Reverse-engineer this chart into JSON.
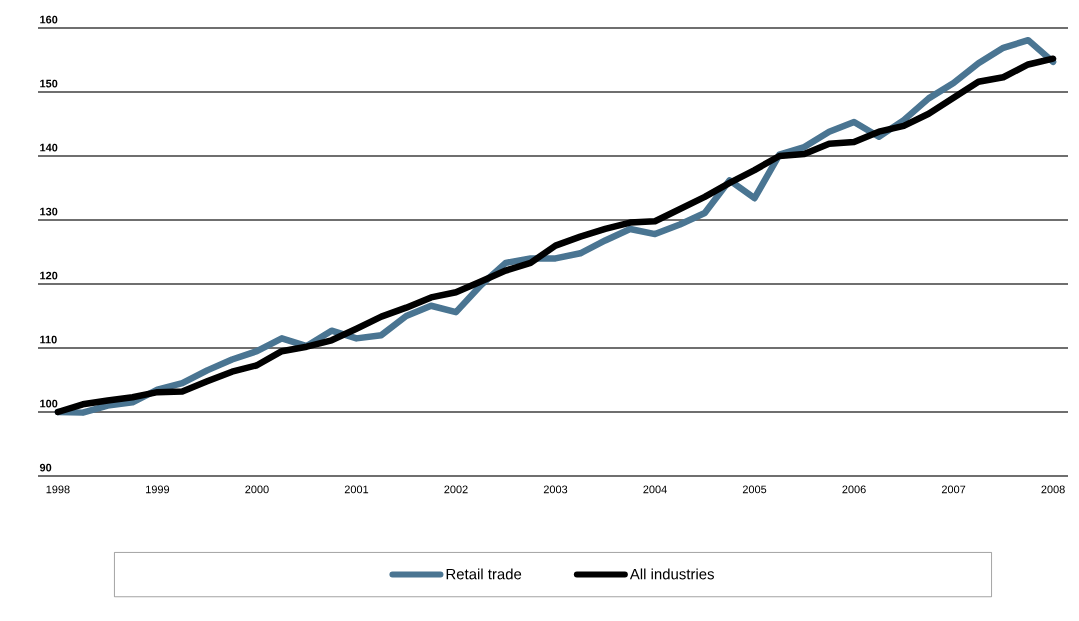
{
  "chart_data": {
    "type": "line",
    "x": [
      1998,
      1998.25,
      1998.5,
      1998.75,
      1999,
      1999.25,
      1999.5,
      1999.75,
      2000,
      2000.25,
      2000.5,
      2000.75,
      2001,
      2001.25,
      2001.5,
      2001.75,
      2002,
      2002.25,
      2002.5,
      2002.75,
      2003,
      2003.25,
      2003.5,
      2003.75,
      2004,
      2004.25,
      2004.5,
      2004.75,
      2005,
      2005.25,
      2005.5,
      2005.75,
      2006,
      2006.25,
      2006.5,
      2006.75,
      2007,
      2007.25,
      2007.5,
      2007.75,
      2008
    ],
    "series": [
      {
        "name": "Retail trade",
        "color": "#4a7592",
        "values": [
          100,
          99.9,
          101,
          101.5,
          103.5,
          104.5,
          106.5,
          108.2,
          109.5,
          111.5,
          110.3,
          112.7,
          111.5,
          112,
          115,
          116.6,
          115.6,
          119.8,
          123.3,
          124,
          124,
          124.8,
          126.8,
          128.6,
          127.8,
          129.3,
          131.1,
          136.2,
          133.4,
          140.2,
          141.4,
          143.8,
          145.3,
          143,
          145.6,
          149,
          151.4,
          154.5,
          156.9,
          158.1,
          154.7
        ]
      },
      {
        "name": "All industries",
        "color": "#000000",
        "values": [
          100,
          101.2,
          101.8,
          102.3,
          103.1,
          103.2,
          104.8,
          106.3,
          107.3,
          109.5,
          110.2,
          111.2,
          113,
          114.9,
          116.3,
          117.9,
          118.7,
          120.4,
          122.1,
          123.3,
          126,
          127.4,
          128.6,
          129.6,
          129.8,
          131.7,
          133.6,
          135.8,
          137.8,
          140,
          140.3,
          141.9,
          142.2,
          143.8,
          144.7,
          146.6,
          149.1,
          151.6,
          152.3,
          154.3,
          155.2
        ]
      }
    ],
    "xlim": [
      1997.8,
      2008.15
    ],
    "xticks": [
      1998,
      1999,
      2000,
      2001,
      2002,
      2003,
      2004,
      2005,
      2006,
      2007,
      2008
    ],
    "ylim": [
      90,
      160
    ],
    "yticks": [
      90,
      100,
      110,
      120,
      130,
      140,
      150,
      160
    ],
    "grid": "y",
    "legend": "bottom",
    "marker": "none",
    "line_style": "solid"
  }
}
